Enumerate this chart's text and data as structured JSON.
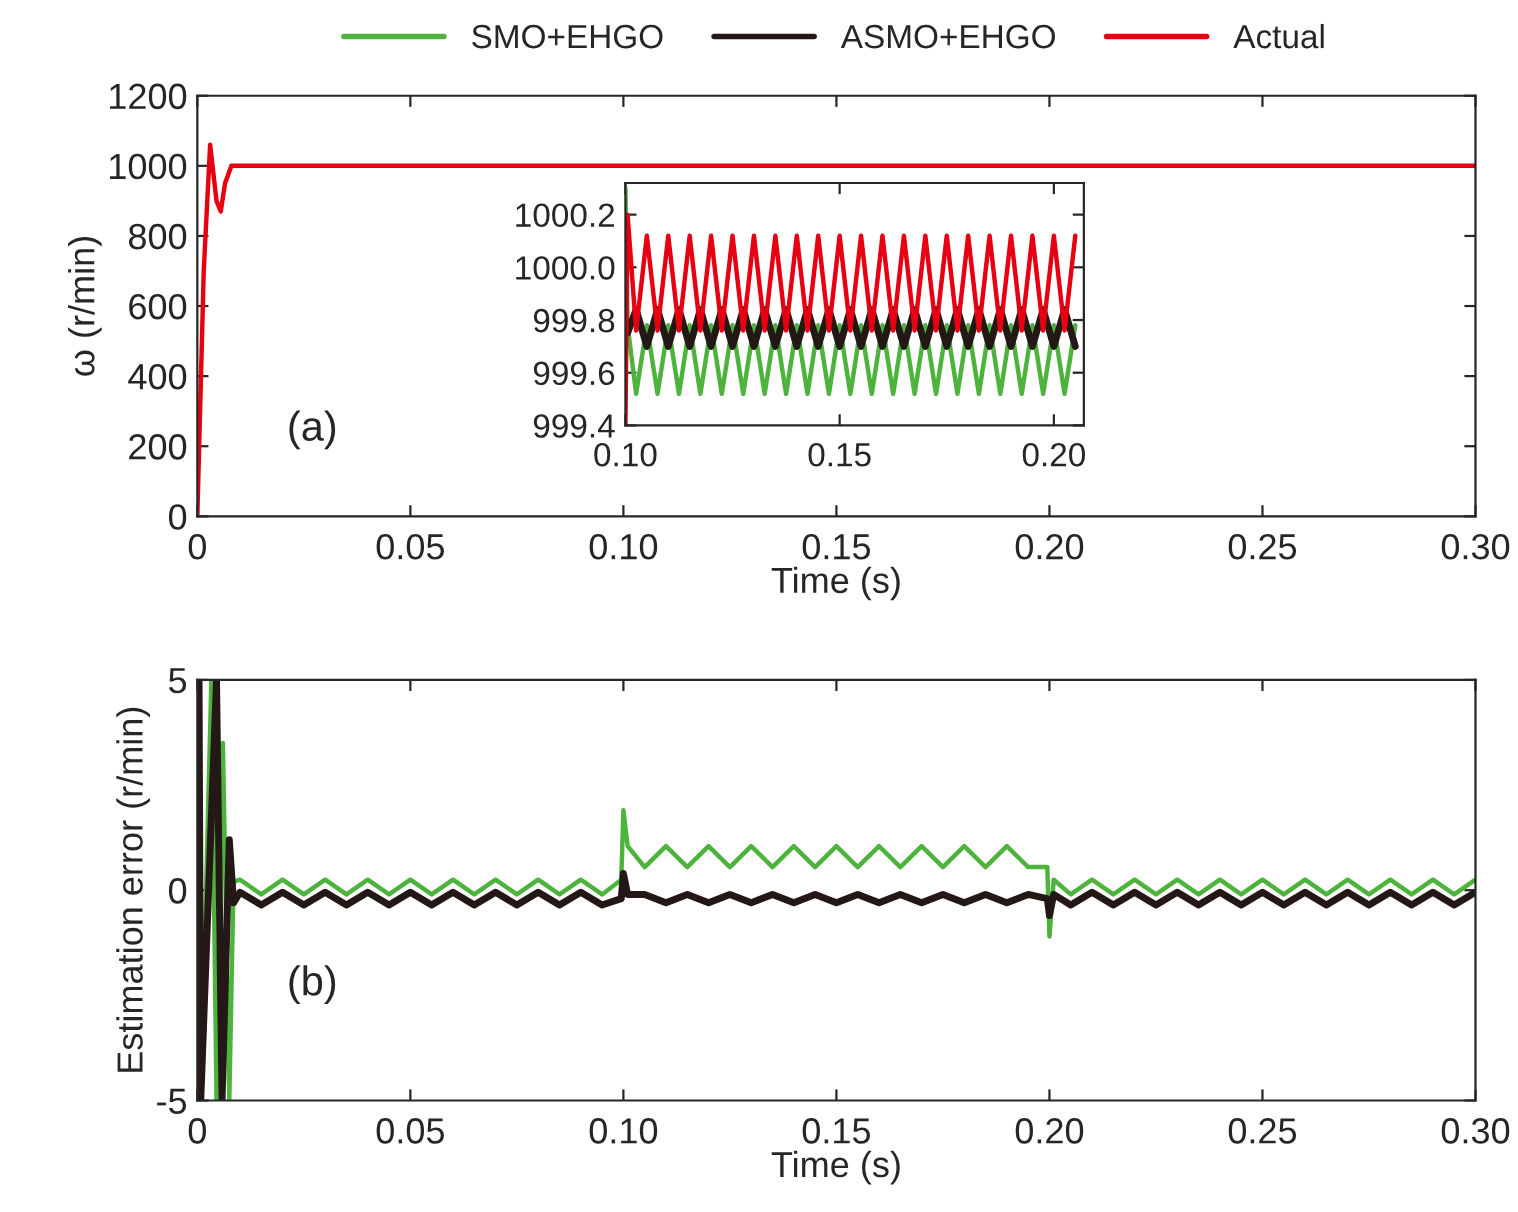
{
  "chart_data": [
    {
      "type": "line",
      "xlabel": "Time (s)",
      "ylabel": "ω (r/min)",
      "annotations": [
        "(a)"
      ],
      "x": [
        0,
        0.0015,
        0.003,
        0.0045,
        0.0055,
        0.0065,
        0.008,
        0.3
      ],
      "series": [
        {
          "color": "#e60012",
          "values": [
            0,
            700,
            1060,
            900,
            870,
            950,
            1000,
            1000
          ]
        }
      ],
      "xlim": [
        0,
        0.3
      ],
      "xticks": [
        0,
        {
          "value": 0.05,
          "label": "0.05"
        },
        {
          "value": 0.1,
          "label": "0.10"
        },
        {
          "value": 0.15,
          "label": "0.15"
        },
        {
          "value": 0.2,
          "label": "0.20"
        },
        {
          "value": 0.25,
          "label": "0.25"
        },
        {
          "value": 0.3,
          "label": "0.30"
        }
      ],
      "ylim": [
        0,
        1200
      ],
      "yticks": [
        0,
        200,
        400,
        600,
        800,
        1000,
        1200
      ],
      "grid": false
    },
    {
      "type": "line",
      "x": [
        0.1,
        0.1005,
        0.1025,
        0.105,
        0.1075,
        0.11,
        0.1125,
        0.115,
        0.1175,
        0.12,
        0.1225,
        0.125,
        0.1275,
        0.13,
        0.1325,
        0.135,
        0.1375,
        0.14,
        0.1425,
        0.145,
        0.1475,
        0.15,
        0.1525,
        0.155,
        0.1575,
        0.16,
        0.1625,
        0.165,
        0.1675,
        0.17,
        0.1725,
        0.175,
        0.1775,
        0.18,
        0.1825,
        0.185,
        0.1875,
        0.19,
        0.1925,
        0.195,
        0.1975,
        0.2,
        0.2025,
        0.205
      ],
      "series": [
        {
          "name": "SMO+EHGO",
          "color": "#4db33d",
          "values": [
            1000.3,
            999.78,
            999.52,
            999.78,
            999.52,
            999.78,
            999.52,
            999.78,
            999.52,
            999.78,
            999.52,
            999.78,
            999.52,
            999.78,
            999.52,
            999.78,
            999.52,
            999.78,
            999.52,
            999.78,
            999.52,
            999.78,
            999.52,
            999.78,
            999.52,
            999.78,
            999.52,
            999.78,
            999.52,
            999.78,
            999.52,
            999.78,
            999.52,
            999.78,
            999.52,
            999.78,
            999.52,
            999.78,
            999.52,
            999.78,
            999.52,
            999.78,
            999.52,
            999.78
          ]
        },
        {
          "name": "ASMO+EHGO",
          "color": "#231815",
          "values": [
            999.8,
            999.75,
            999.84,
            999.7,
            999.84,
            999.7,
            999.84,
            999.7,
            999.84,
            999.7,
            999.84,
            999.7,
            999.84,
            999.7,
            999.84,
            999.7,
            999.84,
            999.7,
            999.84,
            999.7,
            999.84,
            999.7,
            999.84,
            999.7,
            999.84,
            999.7,
            999.84,
            999.7,
            999.84,
            999.7,
            999.84,
            999.7,
            999.84,
            999.7,
            999.84,
            999.7,
            999.84,
            999.7,
            999.84,
            999.7,
            999.84,
            999.7,
            999.84,
            999.7
          ]
        },
        {
          "name": "Actual",
          "color": "#e60012",
          "values": [
            999.4,
            1000.2,
            999.76,
            1000.12,
            999.76,
            1000.12,
            999.76,
            1000.12,
            999.76,
            1000.12,
            999.76,
            1000.12,
            999.76,
            1000.12,
            999.76,
            1000.12,
            999.76,
            1000.12,
            999.76,
            1000.12,
            999.76,
            1000.12,
            999.76,
            1000.12,
            999.76,
            1000.12,
            999.76,
            1000.12,
            999.76,
            1000.12,
            999.76,
            1000.12,
            999.76,
            1000.12,
            999.76,
            1000.12,
            999.76,
            1000.12,
            999.76,
            1000.12,
            999.76,
            1000.12,
            999.76,
            1000.12
          ]
        }
      ],
      "xlim": [
        0.1,
        0.207
      ],
      "xticks": [
        {
          "value": 0.1,
          "label": "0.10"
        },
        {
          "value": 0.15,
          "label": "0.15"
        },
        {
          "value": 0.2,
          "label": "0.20"
        }
      ],
      "ylim": [
        999.4,
        1000.32
      ],
      "yticks": [
        999.4,
        999.6,
        999.8,
        {
          "value": 1000.0,
          "label": "1000.0"
        },
        1000.2
      ],
      "grid": false,
      "legend": "top"
    },
    {
      "type": "line",
      "xlabel": "Time (s)",
      "ylabel": "Estimation error (r/min)",
      "annotations": [
        "(b)"
      ],
      "series": [
        {
          "color": "#4db33d",
          "x": [
            0,
            0.0003,
            0.0008,
            0.0033,
            0.0045,
            0.006,
            0.0075,
            0.0085,
            0.01,
            0.015,
            0.02,
            0.025,
            0.03,
            0.035,
            0.04,
            0.045,
            0.05,
            0.055,
            0.06,
            0.065,
            0.07,
            0.075,
            0.08,
            0.085,
            0.09,
            0.095,
            0.0995,
            0.1,
            0.101,
            0.105,
            0.11,
            0.115,
            0.12,
            0.125,
            0.13,
            0.135,
            0.14,
            0.145,
            0.15,
            0.155,
            0.16,
            0.165,
            0.17,
            0.175,
            0.18,
            0.185,
            0.19,
            0.195,
            0.1995,
            0.2,
            0.201,
            0.205,
            0.21,
            0.215,
            0.22,
            0.225,
            0.23,
            0.235,
            0.24,
            0.245,
            0.25,
            0.255,
            0.26,
            0.265,
            0.27,
            0.275,
            0.28,
            0.285,
            0.29,
            0.295,
            0.3
          ],
          "values": [
            0,
            5,
            -5,
            5,
            -5,
            3.5,
            -5,
            0.2,
            0.25,
            -0.1,
            0.25,
            -0.1,
            0.25,
            -0.1,
            0.25,
            -0.1,
            0.25,
            -0.1,
            0.25,
            -0.1,
            0.25,
            -0.1,
            0.25,
            -0.1,
            0.25,
            -0.1,
            0.25,
            1.9,
            1.05,
            0.55,
            1.05,
            0.55,
            1.05,
            0.55,
            1.05,
            0.55,
            1.05,
            0.55,
            1.05,
            0.55,
            1.05,
            0.55,
            1.05,
            0.55,
            1.05,
            0.55,
            1.05,
            0.55,
            0.55,
            -1.1,
            0.25,
            -0.1,
            0.25,
            -0.1,
            0.25,
            -0.1,
            0.25,
            -0.1,
            0.25,
            -0.1,
            0.25,
            -0.1,
            0.25,
            -0.1,
            0.25,
            -0.1,
            0.25,
            -0.1,
            0.25,
            -0.1,
            0.25
          ]
        },
        {
          "color": "#231815",
          "x": [
            0,
            0.0004,
            0.0008,
            0.0045,
            0.0058,
            0.0075,
            0.0085,
            0.01,
            0.015,
            0.02,
            0.025,
            0.03,
            0.035,
            0.04,
            0.045,
            0.05,
            0.055,
            0.06,
            0.065,
            0.07,
            0.075,
            0.08,
            0.085,
            0.09,
            0.095,
            0.0995,
            0.1,
            0.101,
            0.105,
            0.11,
            0.115,
            0.12,
            0.125,
            0.13,
            0.135,
            0.14,
            0.145,
            0.15,
            0.155,
            0.16,
            0.165,
            0.17,
            0.175,
            0.18,
            0.185,
            0.19,
            0.195,
            0.1995,
            0.2,
            0.201,
            0.205,
            0.21,
            0.215,
            0.22,
            0.225,
            0.23,
            0.235,
            0.24,
            0.245,
            0.25,
            0.255,
            0.26,
            0.265,
            0.27,
            0.275,
            0.28,
            0.285,
            0.29,
            0.295,
            0.3
          ],
          "values": [
            0,
            5,
            -5,
            5,
            -5,
            1.2,
            -0.3,
            -0.05,
            -0.35,
            -0.05,
            -0.35,
            -0.05,
            -0.35,
            -0.05,
            -0.35,
            -0.05,
            -0.35,
            -0.05,
            -0.35,
            -0.05,
            -0.35,
            -0.05,
            -0.35,
            -0.05,
            -0.35,
            -0.2,
            0.4,
            -0.1,
            -0.1,
            -0.3,
            -0.1,
            -0.3,
            -0.1,
            -0.3,
            -0.1,
            -0.3,
            -0.1,
            -0.3,
            -0.1,
            -0.3,
            -0.1,
            -0.3,
            -0.1,
            -0.3,
            -0.1,
            -0.3,
            -0.1,
            -0.2,
            -0.6,
            -0.1,
            -0.35,
            -0.05,
            -0.35,
            -0.05,
            -0.35,
            -0.05,
            -0.35,
            -0.05,
            -0.35,
            -0.05,
            -0.35,
            -0.05,
            -0.35,
            -0.05,
            -0.35,
            -0.05,
            -0.35,
            -0.05,
            -0.35,
            -0.05
          ]
        }
      ],
      "xlim": [
        0,
        0.3
      ],
      "xticks": [
        0,
        {
          "value": 0.05,
          "label": "0.05"
        },
        {
          "value": 0.1,
          "label": "0.10"
        },
        {
          "value": 0.15,
          "label": "0.15"
        },
        {
          "value": 0.2,
          "label": "0.20"
        },
        {
          "value": 0.25,
          "label": "0.25"
        },
        {
          "value": 0.3,
          "label": "0.30"
        }
      ],
      "ylim": [
        -5,
        5
      ],
      "yticks": [
        -5,
        0,
        5
      ],
      "grid": false
    }
  ]
}
